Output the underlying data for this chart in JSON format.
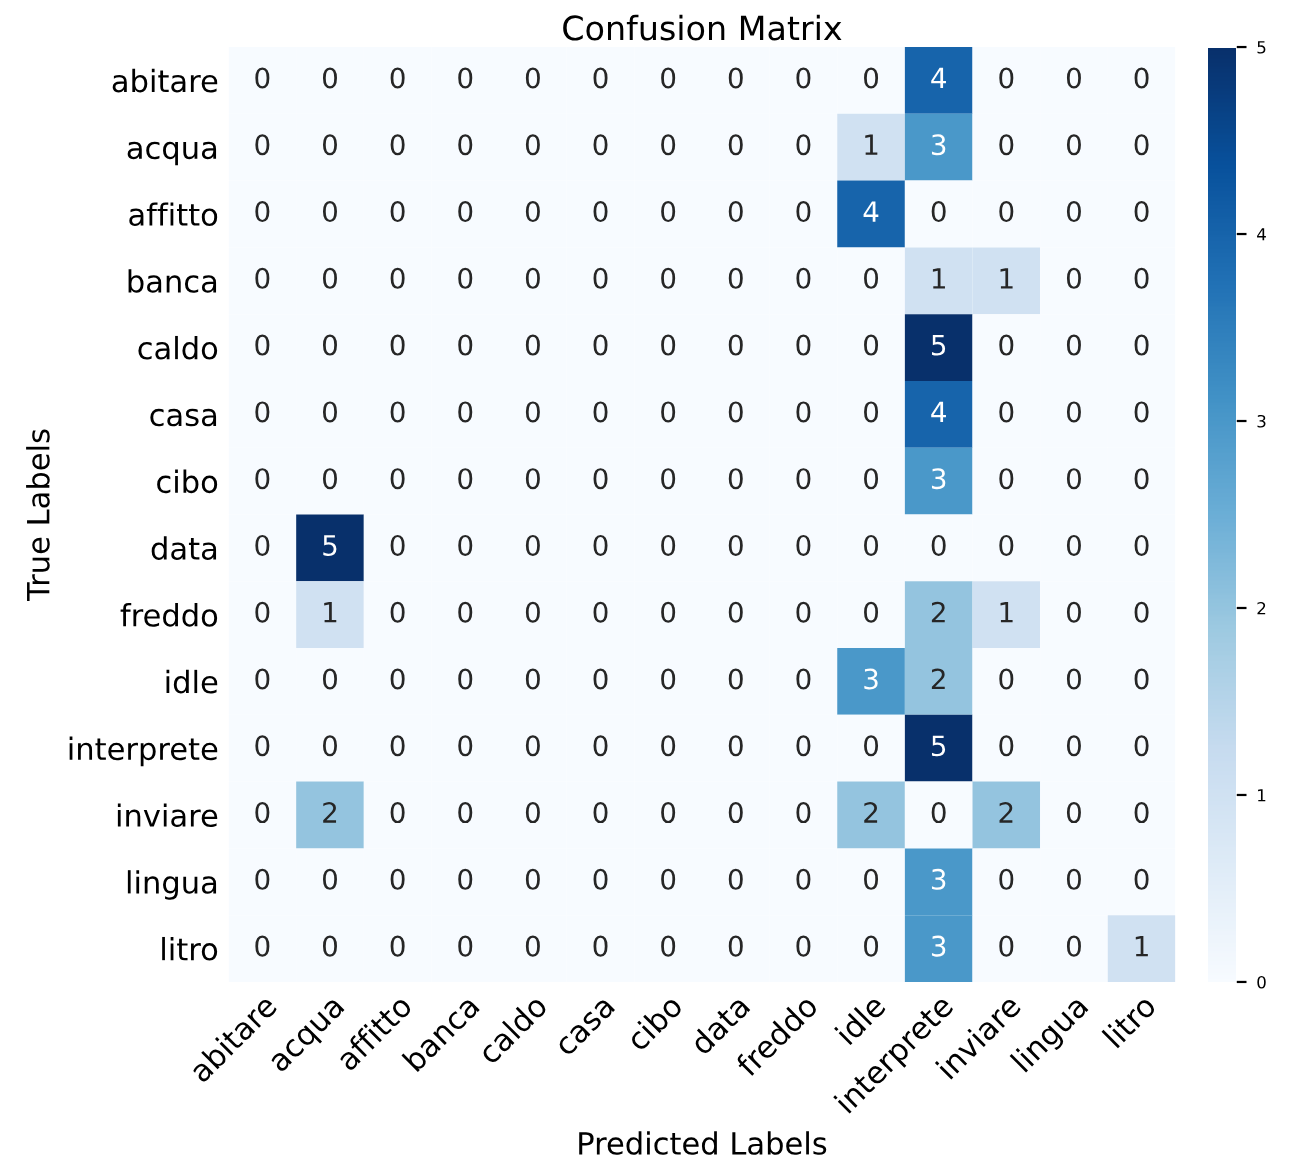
{
  "chart_data": {
    "type": "heatmap",
    "title": "Confusion Matrix",
    "xlabel": "Predicted Labels",
    "ylabel": "True Labels",
    "categories": [
      "abitare",
      "acqua",
      "affitto",
      "banca",
      "caldo",
      "casa",
      "cibo",
      "data",
      "freddo",
      "idle",
      "interprete",
      "inviare",
      "lingua",
      "litro"
    ],
    "y_categories": [
      "abitare",
      "acqua",
      "affitto",
      "banca",
      "caldo",
      "casa",
      "cibo",
      "data",
      "freddo",
      "idle",
      "interprete",
      "inviare",
      "lingua",
      "litro"
    ],
    "cells": [
      [
        0,
        0,
        0,
        0,
        0,
        0,
        0,
        0,
        0,
        0,
        4,
        0,
        0,
        0
      ],
      [
        0,
        0,
        0,
        0,
        0,
        0,
        0,
        0,
        0,
        1,
        3,
        0,
        0,
        0
      ],
      [
        0,
        0,
        0,
        0,
        0,
        0,
        0,
        0,
        0,
        4,
        0,
        0,
        0,
        0
      ],
      [
        0,
        0,
        0,
        0,
        0,
        0,
        0,
        0,
        0,
        0,
        1,
        1,
        0,
        0
      ],
      [
        0,
        0,
        0,
        0,
        0,
        0,
        0,
        0,
        0,
        0,
        5,
        0,
        0,
        0
      ],
      [
        0,
        0,
        0,
        0,
        0,
        0,
        0,
        0,
        0,
        0,
        4,
        0,
        0,
        0
      ],
      [
        0,
        0,
        0,
        0,
        0,
        0,
        0,
        0,
        0,
        0,
        3,
        0,
        0,
        0
      ],
      [
        0,
        5,
        0,
        0,
        0,
        0,
        0,
        0,
        0,
        0,
        0,
        0,
        0,
        0
      ],
      [
        0,
        1,
        0,
        0,
        0,
        0,
        0,
        0,
        0,
        0,
        2,
        1,
        0,
        0
      ],
      [
        0,
        0,
        0,
        0,
        0,
        0,
        0,
        0,
        0,
        3,
        2,
        0,
        0,
        0
      ],
      [
        0,
        0,
        0,
        0,
        0,
        0,
        0,
        0,
        0,
        0,
        5,
        0,
        0,
        0
      ],
      [
        0,
        2,
        0,
        0,
        0,
        0,
        0,
        0,
        0,
        2,
        0,
        2,
        0,
        0
      ],
      [
        0,
        0,
        0,
        0,
        0,
        0,
        0,
        0,
        0,
        0,
        3,
        0,
        0,
        0
      ],
      [
        0,
        0,
        0,
        0,
        0,
        0,
        0,
        0,
        0,
        0,
        3,
        0,
        0,
        1
      ]
    ],
    "clim": [
      0,
      5
    ],
    "cticks": [
      0,
      1,
      2,
      3,
      4,
      5
    ],
    "data_labels": true,
    "grid": false
  }
}
